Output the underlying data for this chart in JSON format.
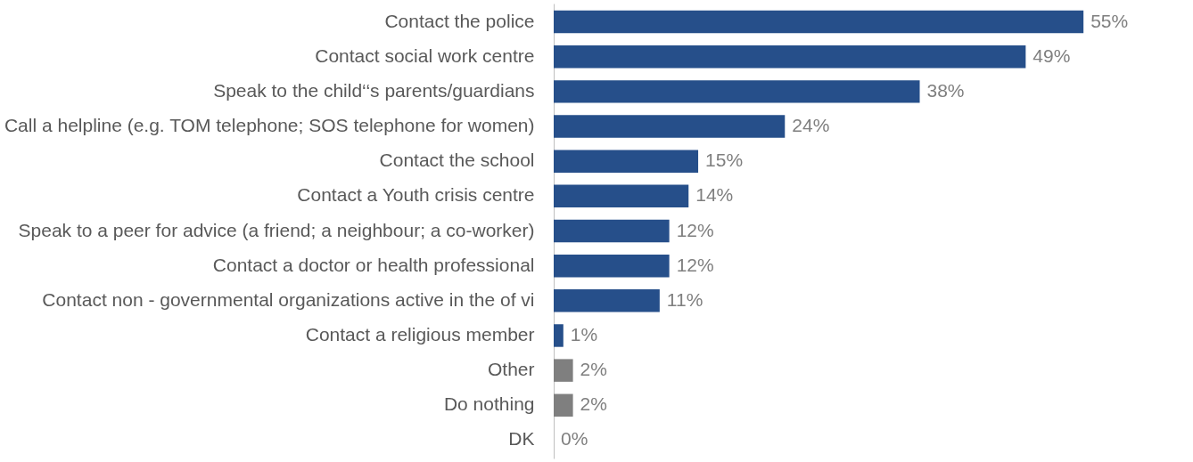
{
  "chart_data": {
    "type": "bar",
    "orientation": "horizontal",
    "categories": [
      "Contact the police",
      "Contact social work centre",
      "Speak to the child‘‘s parents/guardians",
      "Call a helpline (e.g. TOM telephone; SOS telephone for women)",
      "Contact the school",
      "Contact a Youth crisis centre",
      "Speak to a peer for advice (a friend; a neighbour; a co-worker)",
      "Contact a doctor or health professional",
      "Contact non - governmental organizations active in the of vi",
      "Contact a religious member",
      "Other",
      "Do nothing",
      "DK"
    ],
    "values": [
      55,
      49,
      38,
      24,
      15,
      14,
      12,
      12,
      11,
      1,
      2,
      2,
      0
    ],
    "value_labels": [
      "55%",
      "49%",
      "38%",
      "24%",
      "15%",
      "14%",
      "12%",
      "12%",
      "11%",
      "1%",
      "2%",
      "2%",
      "0%"
    ],
    "colors": [
      "#264f8a",
      "#264f8a",
      "#264f8a",
      "#264f8a",
      "#264f8a",
      "#264f8a",
      "#264f8a",
      "#264f8a",
      "#264f8a",
      "#264f8a",
      "#7f7f7f",
      "#7f7f7f",
      "#7f7f7f"
    ],
    "grid": false
  }
}
